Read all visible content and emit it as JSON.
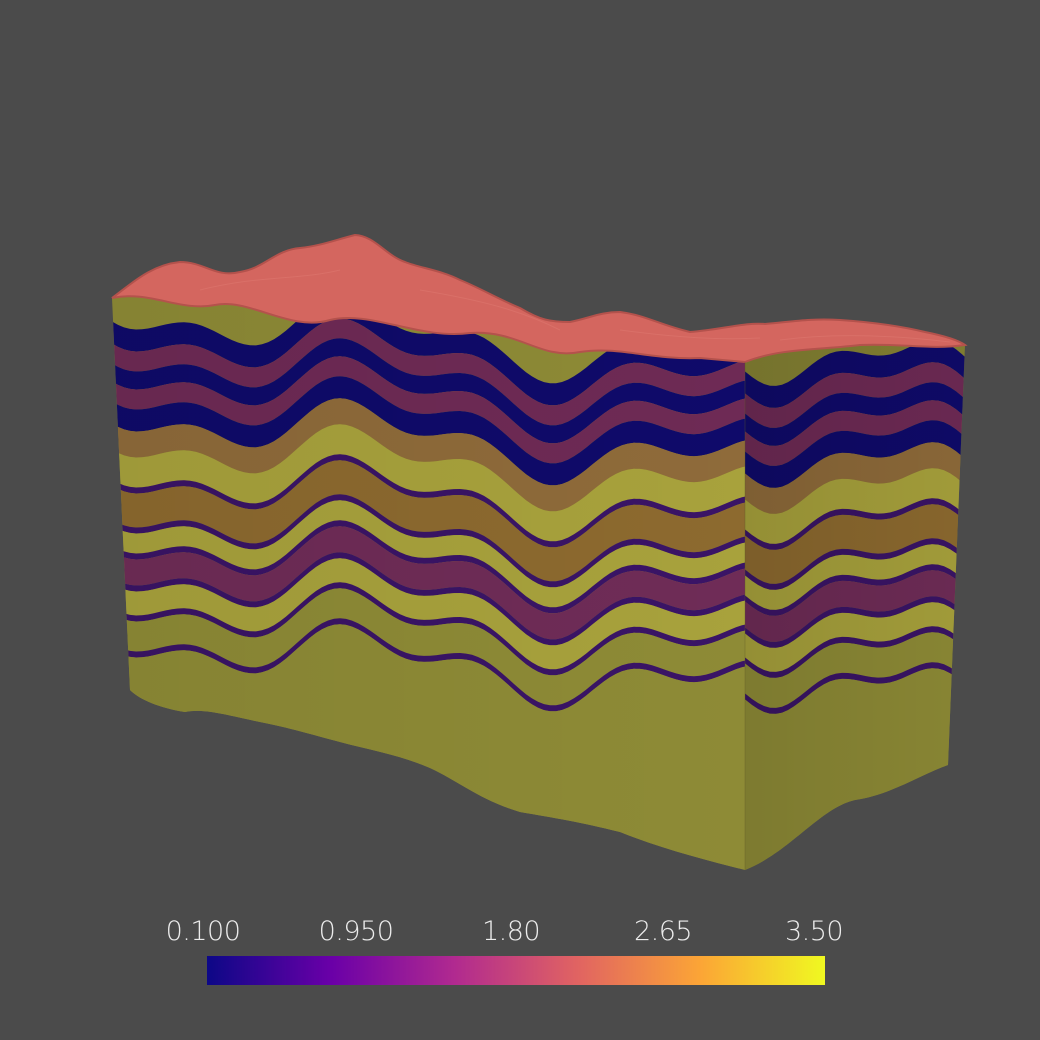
{
  "viewport": {
    "background": "#4b4b4b",
    "object": "layered-block",
    "top_surface_color": "#d4665f",
    "bottom_color": "#8e8b36"
  },
  "colorbar": {
    "colormap": "plasma",
    "min": 0.1,
    "max": 3.5,
    "ticks": [
      "0.100",
      "0.950",
      "1.80",
      "2.65",
      "3.50"
    ],
    "colors": [
      "#0d0887",
      "#6a00a8",
      "#b12a90",
      "#e16462",
      "#fca636",
      "#f0f921"
    ]
  }
}
